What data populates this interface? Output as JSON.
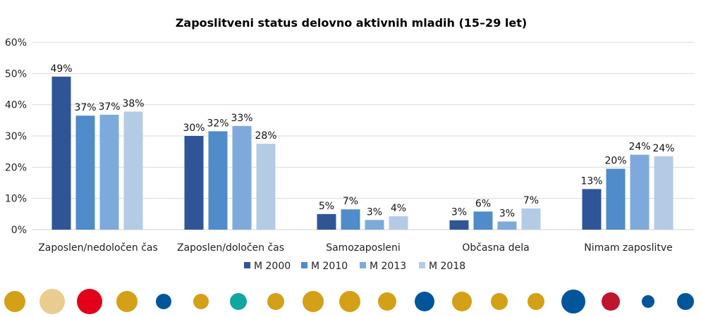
{
  "chart_data": {
    "type": "bar",
    "title": "Zaposlitveni status delovno aktivnih mladih (15–29 let)",
    "xlabel": "",
    "ylabel": "",
    "ylim": [
      0,
      60
    ],
    "y_ticks": [
      0,
      10,
      20,
      30,
      40,
      50,
      60
    ],
    "y_tick_labels": [
      "0%",
      "10%",
      "20%",
      "30%",
      "40%",
      "50%",
      "60%"
    ],
    "grid": true,
    "legend_position": "bottom",
    "categories": [
      "Zaposlen/nedoločen čas",
      "Zaposlen/določen čas",
      "Samozaposleni",
      "Občasna dela",
      "Nimam zaposlitve"
    ],
    "series": [
      {
        "name": "M 2000",
        "color": "#2f5597",
        "values": [
          49,
          30,
          5,
          3,
          13
        ],
        "labels": [
          "49%",
          "30%",
          "5%",
          "3%",
          "13%"
        ]
      },
      {
        "name": "M 2010",
        "color": "#4f8cc9",
        "values": [
          36.5,
          31.5,
          6.5,
          5.8,
          19.5
        ],
        "labels": [
          "37%",
          "32%",
          "7%",
          "6%",
          "20%"
        ]
      },
      {
        "name": "M 2013",
        "color": "#7eaadb",
        "values": [
          36.8,
          33.2,
          3.1,
          2.6,
          24
        ],
        "labels": [
          "37%",
          "33%",
          "3%",
          "3%",
          "24%"
        ]
      },
      {
        "name": "M 2018",
        "color": "#b4cbe6",
        "values": [
          37.8,
          27.5,
          4.3,
          6.8,
          23.5
        ],
        "labels": [
          "38%",
          "28%",
          "4%",
          "7%",
          "24%"
        ]
      }
    ]
  },
  "decor": {
    "dots": [
      {
        "color": "#d4a017"
      },
      {
        "color": "#e8cd8f"
      },
      {
        "color": "#e2001a"
      },
      {
        "color": "#d4a017"
      },
      {
        "color": "#00559b"
      },
      {
        "color": "#d4a017"
      },
      {
        "color": "#12a6a0"
      },
      {
        "color": "#d4a017"
      },
      {
        "color": "#d4a017"
      },
      {
        "color": "#d4a017"
      },
      {
        "color": "#d4a017"
      },
      {
        "color": "#00559b"
      },
      {
        "color": "#d4a017"
      },
      {
        "color": "#d4a017"
      },
      {
        "color": "#d4a017"
      },
      {
        "color": "#00559b"
      },
      {
        "color": "#c0152f"
      },
      {
        "color": "#00559b"
      },
      {
        "color": "#00559b"
      }
    ]
  }
}
